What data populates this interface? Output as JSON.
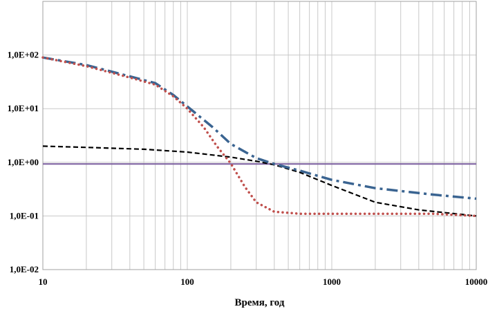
{
  "chart_data": {
    "type": "line",
    "title": "",
    "xlabel": "Время, год",
    "ylabel": "",
    "x_scale": "log",
    "y_scale": "log",
    "xlim": [
      10,
      10000
    ],
    "ylim": [
      0.01,
      1000
    ],
    "x_ticks": [
      10,
      100,
      1000,
      10000
    ],
    "x_tick_labels": [
      "10",
      "100",
      "1000",
      "10000"
    ],
    "y_ticks": [
      0.01,
      0.1,
      1,
      10,
      100
    ],
    "y_tick_labels": [
      "1,0E-02",
      "1,0E-01",
      "1,0E+00",
      "1,0E+01",
      "1,0E+02"
    ],
    "grid": true,
    "series": [
      {
        "style": "dash-dot",
        "color": "#3a6491",
        "x": [
          10,
          20,
          40,
          60,
          80,
          100,
          150,
          200,
          300,
          400,
          600,
          1000,
          2000,
          5000,
          10000
        ],
        "y": [
          90,
          65,
          40,
          30,
          18,
          11,
          4.5,
          2.2,
          1.2,
          0.93,
          0.7,
          0.47,
          0.33,
          0.25,
          0.21
        ]
      },
      {
        "style": "dotted",
        "color": "#c0504d",
        "x": [
          10,
          20,
          40,
          60,
          80,
          100,
          130,
          160,
          200,
          250,
          300,
          400,
          600,
          1000,
          2000,
          5000,
          10000
        ],
        "y": [
          90,
          62,
          38,
          28,
          17,
          10,
          4.5,
          2.0,
          0.95,
          0.35,
          0.18,
          0.12,
          0.11,
          0.11,
          0.11,
          0.11,
          0.1
        ]
      },
      {
        "style": "dashed",
        "color": "#000000",
        "x": [
          10,
          20,
          50,
          100,
          200,
          300,
          400,
          600,
          1000,
          2000,
          4000,
          10000
        ],
        "y": [
          2.0,
          1.9,
          1.75,
          1.55,
          1.25,
          1.05,
          0.9,
          0.65,
          0.37,
          0.18,
          0.13,
          0.1
        ]
      },
      {
        "style": "solid",
        "color": "#8064a2",
        "x": [
          10,
          10000
        ],
        "y": [
          0.93,
          0.93
        ]
      }
    ]
  }
}
